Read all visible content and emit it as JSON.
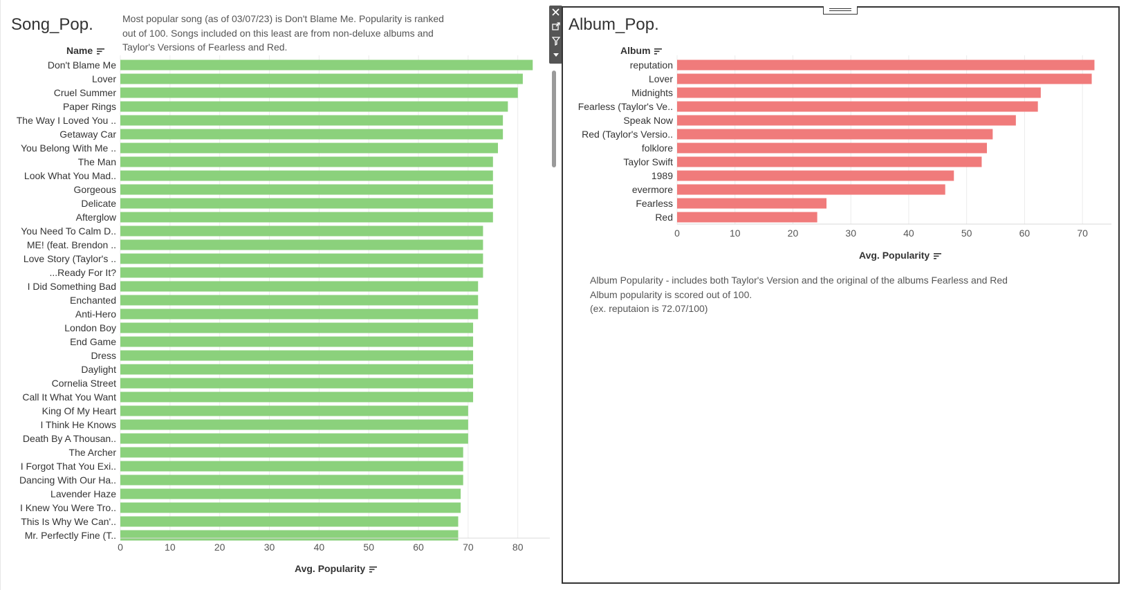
{
  "colors": {
    "song_bar": "#8bd17c",
    "album_bar": "#f07b7b",
    "grid": "#ebebeb",
    "text": "#333333"
  },
  "song_sheet": {
    "title": "Song_Pop.",
    "caption_lines": [
      "Most popular song (as of 03/07/23) is Don't Blame Me. Popularity is ranked",
      "out of 100. Songs included on this least are from non-deluxe albums and",
      "Taylor's Versions of Fearless and Red."
    ],
    "row_header": "Name",
    "axis_title": "Avg. Popularity",
    "sort_icon": "sort-descending-icon"
  },
  "album_sheet": {
    "title": "Album_Pop.",
    "row_header": "Album",
    "axis_title": "Avg. Popularity",
    "sort_icon": "sort-descending-icon",
    "caption_lines": [
      "Album Popularity - includes both Taylor's Version and the original of the albums Fearless and Red",
      "Album popularity is scored out of 100.",
      "(ex. reputaion is 72.07/100)"
    ]
  },
  "toolbar": {
    "icons": [
      "close-icon",
      "popout-icon",
      "filter-icon",
      "dropdown-icon"
    ]
  },
  "chart_data": [
    {
      "type": "bar",
      "orientation": "horizontal",
      "title": "Song_Pop.",
      "ylabel": "Name",
      "xlabel": "Avg. Popularity",
      "xlim": [
        0,
        87
      ],
      "xticks": [
        0,
        10,
        20,
        30,
        40,
        50,
        60,
        70,
        80
      ],
      "grid": true,
      "categories": [
        "Don't Blame Me",
        "Lover",
        "Cruel Summer",
        "Paper Rings",
        "The Way I Loved You ..",
        "Getaway Car",
        "You Belong With Me ..",
        "The Man",
        "Look What You Mad..",
        "Gorgeous",
        "Delicate",
        "Afterglow",
        "You Need To Calm D..",
        "ME! (feat. Brendon ..",
        "Love Story (Taylor's ..",
        "...Ready For It?",
        "I Did Something Bad",
        "Enchanted",
        "Anti-Hero",
        "London Boy",
        "End Game",
        "Dress",
        "Daylight",
        "Cornelia Street",
        "Call It What You Want",
        "King Of My Heart",
        "I Think He Knows",
        "Death By A Thousan..",
        "The Archer",
        "I Forgot That You Exi..",
        "Dancing With Our Ha..",
        "Lavender Haze",
        "I Knew You Were Tro..",
        "This Is Why We Can'..",
        "Mr. Perfectly Fine (T.."
      ],
      "values": [
        83,
        81,
        80,
        78,
        77,
        77,
        76,
        75,
        75,
        75,
        75,
        75,
        73,
        73,
        73,
        73,
        72,
        72,
        72,
        71,
        71,
        71,
        71,
        71,
        71,
        70,
        70,
        70,
        69,
        69,
        69,
        68.5,
        68.5,
        68,
        68
      ]
    },
    {
      "type": "bar",
      "orientation": "horizontal",
      "title": "Album_Pop.",
      "ylabel": "Album",
      "xlabel": "Avg. Popularity",
      "xlim": [
        0,
        75
      ],
      "xticks": [
        0,
        10,
        20,
        30,
        40,
        50,
        60,
        70
      ],
      "grid": true,
      "categories": [
        "reputation",
        "Lover",
        "Midnights",
        "Fearless (Taylor's Ve..",
        "Speak Now",
        "Red (Taylor's Versio..",
        "folklore",
        "Taylor Swift",
        "1989",
        "evermore",
        "Fearless",
        "Red"
      ],
      "values": [
        72.07,
        71.6,
        62.8,
        62.3,
        58.5,
        54.5,
        53.5,
        52.6,
        47.8,
        46.3,
        25.8,
        24.2
      ]
    }
  ]
}
